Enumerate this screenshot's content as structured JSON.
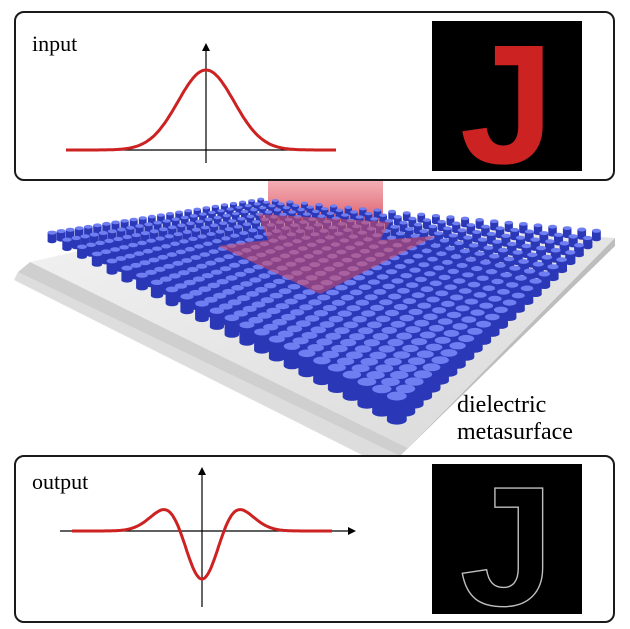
{
  "input_panel": {
    "label": "input",
    "image_letter": "J",
    "curve": "gaussian",
    "colors": {
      "curve": "#cc2222",
      "letter": "#cc2222",
      "background": "#000000"
    }
  },
  "output_panel": {
    "label": "output",
    "image_letter": "J",
    "curve": "second-derivative of gaussian",
    "colors": {
      "curve": "#cc2222",
      "letter_outline": "#bfbfbf",
      "background": "#000000"
    }
  },
  "metasurface": {
    "label_line1": "dielectric",
    "label_line2": "metasurface",
    "colors": {
      "pillar": "#3344cc",
      "substrate": "#d8d8d8",
      "beam": "#e0606a"
    }
  }
}
